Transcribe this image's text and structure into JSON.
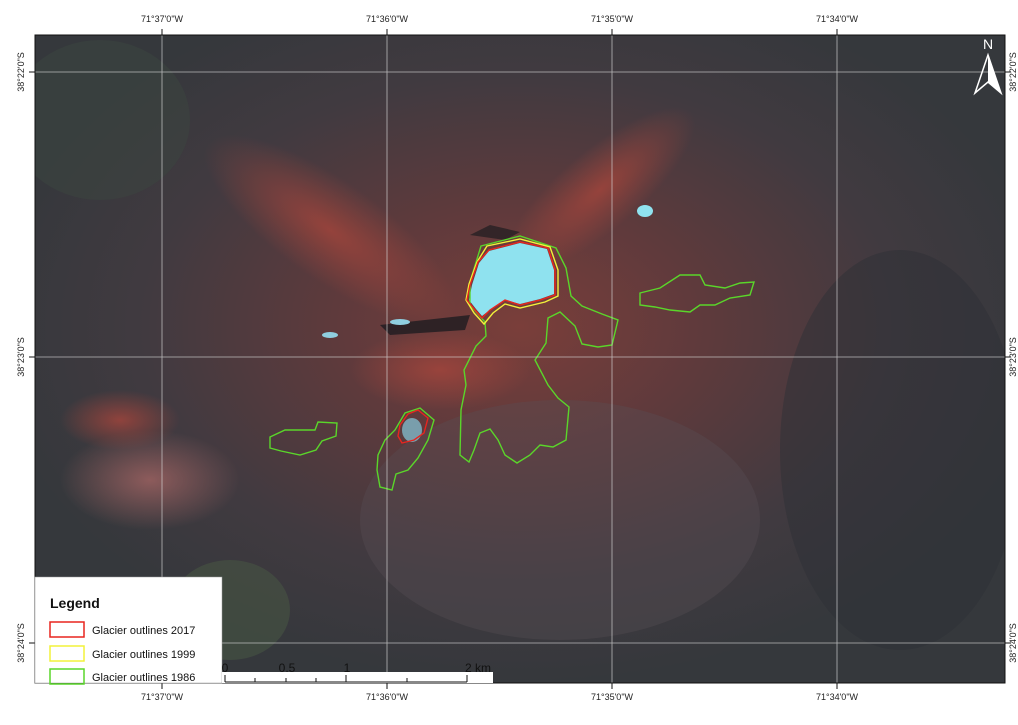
{
  "graticule": {
    "longitudes": [
      "71°37'0\"W",
      "71°36'0\"W",
      "71°35'0\"W",
      "71°34'0\"W"
    ],
    "latitudes": [
      "38°22'0\"S",
      "38°23'0\"S",
      "38°24'0\"S"
    ]
  },
  "north_arrow": "N",
  "legend": {
    "title": "Legend",
    "items": [
      {
        "label": "Glacier outlines 2017",
        "color": "#e8251f"
      },
      {
        "label": "Glacier outlines 1999",
        "color": "#f2f23a"
      },
      {
        "label": "Glacier outlines 1986",
        "color": "#5ad62a"
      }
    ]
  },
  "scale_bar": {
    "labels": [
      "0",
      "0.5",
      "1",
      "2 km"
    ]
  }
}
